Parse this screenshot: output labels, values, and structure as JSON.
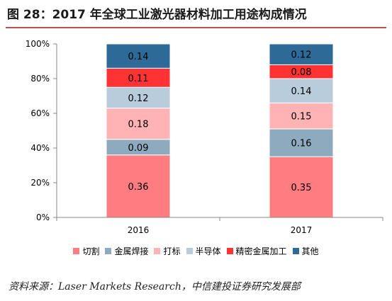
{
  "figure": {
    "title": "图 28：2017 年全球工业激光器材料加工用途构成情况",
    "source": "资料来源：Laser Markets Research，中信建投证券研究发展部"
  },
  "chart_data": {
    "type": "bar",
    "stacked": true,
    "categories": [
      "2016",
      "2017"
    ],
    "series": [
      {
        "name": "切割",
        "color": "#ff7c80",
        "values": [
          0.36,
          0.35
        ]
      },
      {
        "name": "金属焊接",
        "color": "#8eaabe",
        "values": [
          0.09,
          0.16
        ]
      },
      {
        "name": "打标",
        "color": "#ffb3b5",
        "values": [
          0.18,
          0.15
        ]
      },
      {
        "name": "半导体",
        "color": "#b8ccdc",
        "values": [
          0.12,
          0.14
        ]
      },
      {
        "name": "精密金属加工",
        "color": "#ff3333",
        "values": [
          0.11,
          0.08
        ]
      },
      {
        "name": "其他",
        "color": "#2e6a97",
        "values": [
          0.14,
          0.12
        ]
      }
    ],
    "data_labels": [
      [
        "0.36",
        "0.09",
        "0.18",
        "0.12",
        "0.11",
        "0.14"
      ],
      [
        "0.35",
        "0.16",
        "0.15",
        "0.14",
        "0.08",
        "0.12"
      ]
    ],
    "ylim": [
      0,
      1
    ],
    "yticks": [
      "0%",
      "20%",
      "40%",
      "60%",
      "80%",
      "100%"
    ],
    "xlabel": "",
    "ylabel": "",
    "grid": false,
    "legend_position": "bottom"
  }
}
